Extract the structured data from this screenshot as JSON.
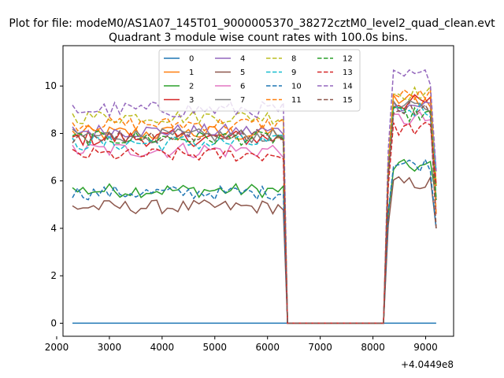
{
  "suptitle": "Plot for file: modeM0/AS1A07_145T01_9000005370_38272cztM0_level2_quad_clean.evt",
  "chart_data": {
    "type": "line",
    "title": "Quadrant 3 module wise count rates with 100.0s bins.",
    "xlabel": "",
    "ylabel": "",
    "x_offset_label": "+4.0449e8",
    "xlim": [
      2120,
      9530
    ],
    "ylim": [
      -0.55,
      11.7
    ],
    "xticks": [
      2000,
      3000,
      4000,
      5000,
      6000,
      7000,
      8000,
      9000
    ],
    "yticks": [
      0,
      2,
      4,
      6,
      8,
      10
    ],
    "grid": false,
    "legend": {
      "placement": "upper center",
      "columns": 4
    },
    "gap": {
      "start": 6300,
      "plateau_start": 6380,
      "plateau_end": 8200,
      "end": 8290
    },
    "time_range": {
      "start": 2300,
      "end": 9200,
      "step": 100
    },
    "series": [
      {
        "name": "0",
        "color": "#1f77b4",
        "dashed": false,
        "level1": 0.0,
        "level2": 0.0,
        "noise": 0.0
      },
      {
        "name": "1",
        "color": "#ff7f0e",
        "dashed": false,
        "level1": 8.0,
        "level2": 9.4,
        "noise": 0.35
      },
      {
        "name": "2",
        "color": "#2ca02c",
        "dashed": false,
        "level1": 5.6,
        "level2": 6.6,
        "noise": 0.3
      },
      {
        "name": "3",
        "color": "#d62728",
        "dashed": false,
        "level1": 7.8,
        "level2": 9.3,
        "noise": 0.35
      },
      {
        "name": "4",
        "color": "#9467bd",
        "dashed": false,
        "level1": 8.1,
        "level2": 9.2,
        "noise": 0.3
      },
      {
        "name": "5",
        "color": "#8c564b",
        "dashed": false,
        "level1": 4.9,
        "level2": 5.9,
        "noise": 0.3
      },
      {
        "name": "6",
        "color": "#e377c2",
        "dashed": false,
        "level1": 7.3,
        "level2": 8.6,
        "noise": 0.35
      },
      {
        "name": "7",
        "color": "#7f7f7f",
        "dashed": false,
        "level1": 7.9,
        "level2": 9.1,
        "noise": 0.3
      },
      {
        "name": "8",
        "color": "#bcbd22",
        "dashed": true,
        "level1": 8.7,
        "level2": 9.7,
        "noise": 0.3
      },
      {
        "name": "9",
        "color": "#17becf",
        "dashed": true,
        "level1": 7.6,
        "level2": 9.0,
        "noise": 0.35
      },
      {
        "name": "10",
        "color": "#1f77b4",
        "dashed": true,
        "level1": 5.5,
        "level2": 6.7,
        "noise": 0.3
      },
      {
        "name": "11",
        "color": "#ff7f0e",
        "dashed": true,
        "level1": 8.4,
        "level2": 9.6,
        "noise": 0.3
      },
      {
        "name": "12",
        "color": "#2ca02c",
        "dashed": true,
        "level1": 7.8,
        "level2": 8.8,
        "noise": 0.3
      },
      {
        "name": "13",
        "color": "#d62728",
        "dashed": true,
        "level1": 7.1,
        "level2": 8.2,
        "noise": 0.3
      },
      {
        "name": "14",
        "color": "#9467bd",
        "dashed": true,
        "level1": 9.0,
        "level2": 10.4,
        "noise": 0.35
      },
      {
        "name": "15",
        "color": "#8c564b",
        "dashed": true,
        "level1": 7.9,
        "level2": 9.1,
        "noise": 0.3
      }
    ]
  }
}
